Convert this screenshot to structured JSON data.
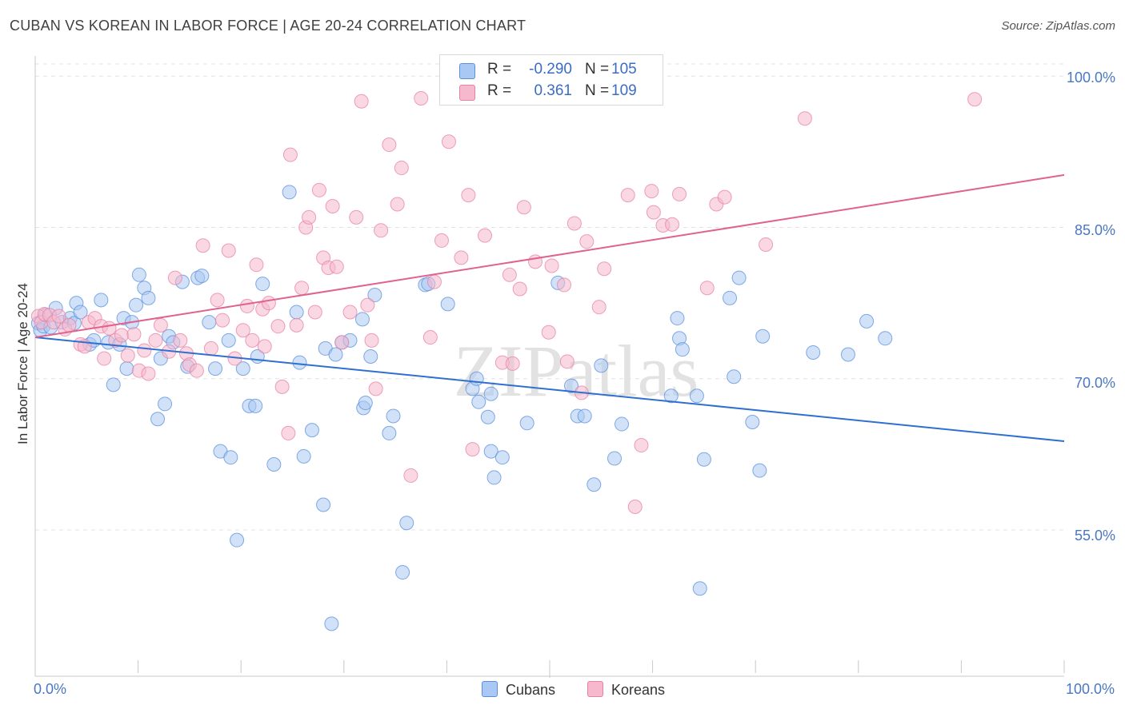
{
  "title": "CUBAN VS KOREAN IN LABOR FORCE | AGE 20-24 CORRELATION CHART",
  "source": "Source: ZipAtlas.com",
  "watermark": "ZIPatlas",
  "colors": {
    "cubans_fill": "#a9c8f3",
    "cubans_stroke": "#5b8fdc",
    "cubans_line": "#2f6fd0",
    "koreans_fill": "#f6b8cc",
    "koreans_stroke": "#e880a4",
    "koreans_line": "#e0628e",
    "axis_text": "#4a77c4",
    "grid": "#e3e3e3"
  },
  "legend_top": {
    "cubans": {
      "r_label": "R =",
      "r_value": "-0.290",
      "n_label": "N =",
      "n_value": "105"
    },
    "koreans": {
      "r_label": "R =",
      "r_value": "0.361",
      "n_label": "N =",
      "n_value": "109"
    }
  },
  "chart_data": {
    "type": "scatter",
    "title": "CUBAN VS KOREAN IN LABOR FORCE | AGE 20-24 CORRELATION CHART",
    "xlabel": "",
    "ylabel": "In Labor Force | Age 20-24",
    "xlim": [
      0,
      100
    ],
    "ylim": [
      40.5,
      102
    ],
    "x_tick_labels": [
      "0.0%",
      "100.0%"
    ],
    "y_ticks": [
      55,
      70,
      85,
      100
    ],
    "y_tick_labels": [
      "55.0%",
      "70.0%",
      "85.0%",
      "100.0%"
    ],
    "grid": true,
    "legend": "bottom-center",
    "series": [
      {
        "name": "Cubans",
        "R": -0.29,
        "N": 105,
        "trend": {
          "x": [
            0,
            100
          ],
          "y": [
            74.1,
            63.8
          ]
        },
        "points": [
          [
            0.3,
            75.5
          ],
          [
            0.5,
            74.8
          ],
          [
            0.8,
            75.2
          ],
          [
            1,
            76.3
          ],
          [
            1.5,
            75.1
          ],
          [
            2,
            77
          ],
          [
            2.6,
            75.6
          ],
          [
            3.4,
            76
          ],
          [
            3.8,
            75.5
          ],
          [
            4,
            77.5
          ],
          [
            4.4,
            76.6
          ],
          [
            5.3,
            73.4
          ],
          [
            5.7,
            73.8
          ],
          [
            6.4,
            77.8
          ],
          [
            7.1,
            73.6
          ],
          [
            7.6,
            69.4
          ],
          [
            8.2,
            73.4
          ],
          [
            8.6,
            76
          ],
          [
            8.9,
            71
          ],
          [
            9.4,
            75.6
          ],
          [
            9.8,
            77.3
          ],
          [
            10.1,
            80.3
          ],
          [
            10.6,
            79
          ],
          [
            11,
            78
          ],
          [
            11.9,
            66
          ],
          [
            12.6,
            67.5
          ],
          [
            12.2,
            72
          ],
          [
            13,
            74.2
          ],
          [
            13.4,
            73.6
          ],
          [
            14.3,
            79.6
          ],
          [
            14.8,
            71.2
          ],
          [
            15.8,
            80
          ],
          [
            16.2,
            80.2
          ],
          [
            16.9,
            75.6
          ],
          [
            17.5,
            71
          ],
          [
            18,
            62.8
          ],
          [
            18.8,
            73.8
          ],
          [
            19,
            62.2
          ],
          [
            19.6,
            54
          ],
          [
            20.2,
            71
          ],
          [
            20.8,
            67.3
          ],
          [
            21.4,
            67.3
          ],
          [
            21.6,
            72.2
          ],
          [
            22.1,
            79.4
          ],
          [
            23.2,
            61.5
          ],
          [
            24.7,
            88.5
          ],
          [
            25.4,
            76.6
          ],
          [
            25.7,
            71.6
          ],
          [
            26.1,
            62.3
          ],
          [
            26.9,
            64.9
          ],
          [
            28,
            57.5
          ],
          [
            28.2,
            73
          ],
          [
            28.8,
            45.7
          ],
          [
            29.2,
            72.4
          ],
          [
            29.8,
            73.6
          ],
          [
            30.6,
            73.8
          ],
          [
            31.8,
            75.9
          ],
          [
            31.9,
            67.1
          ],
          [
            32.1,
            67.6
          ],
          [
            32.6,
            72.2
          ],
          [
            33,
            78.3
          ],
          [
            34.4,
            64.6
          ],
          [
            34.8,
            66.3
          ],
          [
            35.7,
            50.8
          ],
          [
            36.1,
            55.7
          ],
          [
            37.9,
            79.3
          ],
          [
            38.2,
            79.4
          ],
          [
            40.1,
            77.4
          ],
          [
            42.5,
            69
          ],
          [
            42.9,
            70
          ],
          [
            43.1,
            67.7
          ],
          [
            44,
            66.2
          ],
          [
            44.3,
            68.5
          ],
          [
            44.3,
            62.8
          ],
          [
            44.6,
            60.2
          ],
          [
            45.4,
            62.2
          ],
          [
            47.8,
            65.6
          ],
          [
            50.8,
            79.5
          ],
          [
            52.1,
            69.3
          ],
          [
            52.7,
            66.3
          ],
          [
            53.4,
            66.3
          ],
          [
            54.3,
            59.5
          ],
          [
            55,
            71.3
          ],
          [
            56.3,
            62.1
          ],
          [
            57,
            65.5
          ],
          [
            61.8,
            68.3
          ],
          [
            62.4,
            76
          ],
          [
            62.6,
            74
          ],
          [
            62.9,
            72.9
          ],
          [
            64.3,
            68.3
          ],
          [
            64.6,
            49.2
          ],
          [
            65,
            62
          ],
          [
            67.5,
            78
          ],
          [
            67.9,
            70.2
          ],
          [
            68.4,
            80
          ],
          [
            69.7,
            65.7
          ],
          [
            70.4,
            60.9
          ],
          [
            70.7,
            74.2
          ],
          [
            75.6,
            72.6
          ],
          [
            79,
            72.4
          ],
          [
            80.8,
            75.7
          ],
          [
            82.6,
            74
          ]
        ]
      },
      {
        "name": "Koreans",
        "R": 0.361,
        "N": 109,
        "trend": {
          "x": [
            0,
            100
          ],
          "y": [
            74.1,
            90.2
          ]
        },
        "points": [
          [
            0.3,
            76.2
          ],
          [
            0.6,
            75.6
          ],
          [
            0.9,
            76.4
          ],
          [
            1.4,
            76.3
          ],
          [
            1.8,
            75.6
          ],
          [
            2.3,
            76.2
          ],
          [
            2.9,
            74.9
          ],
          [
            3.3,
            75.3
          ],
          [
            4.4,
            73.4
          ],
          [
            4.8,
            73.2
          ],
          [
            5.2,
            75.6
          ],
          [
            5.8,
            76
          ],
          [
            6.4,
            75.2
          ],
          [
            6.7,
            72
          ],
          [
            7.2,
            75
          ],
          [
            7.8,
            73.8
          ],
          [
            8.4,
            74.3
          ],
          [
            9,
            72.3
          ],
          [
            9.6,
            74.4
          ],
          [
            10.1,
            70.8
          ],
          [
            10.6,
            72.8
          ],
          [
            11,
            70.5
          ],
          [
            11.7,
            73.8
          ],
          [
            12.2,
            75.3
          ],
          [
            13,
            72.7
          ],
          [
            13.6,
            80
          ],
          [
            14.1,
            73.8
          ],
          [
            14.7,
            72.5
          ],
          [
            15,
            71.4
          ],
          [
            15.7,
            70.8
          ],
          [
            16.3,
            83.2
          ],
          [
            17.1,
            73
          ],
          [
            17.7,
            77.8
          ],
          [
            18.2,
            75.8
          ],
          [
            18.8,
            82.7
          ],
          [
            19.4,
            72
          ],
          [
            20.2,
            74.8
          ],
          [
            20.6,
            77.2
          ],
          [
            21.1,
            73.8
          ],
          [
            21.5,
            81.3
          ],
          [
            22.1,
            76.9
          ],
          [
            22.3,
            73.2
          ],
          [
            22.7,
            77.5
          ],
          [
            23.6,
            75.2
          ],
          [
            24,
            69.2
          ],
          [
            24.6,
            64.6
          ],
          [
            24.8,
            92.2
          ],
          [
            25.4,
            75.3
          ],
          [
            25.9,
            79
          ],
          [
            26.3,
            85
          ],
          [
            26.6,
            86
          ],
          [
            27.2,
            76.6
          ],
          [
            27.6,
            88.7
          ],
          [
            28,
            82
          ],
          [
            28.5,
            81
          ],
          [
            28.9,
            87.1
          ],
          [
            29.3,
            81.1
          ],
          [
            29.8,
            73.6
          ],
          [
            30.6,
            76.6
          ],
          [
            31.2,
            86
          ],
          [
            31.7,
            97.5
          ],
          [
            32.3,
            77.3
          ],
          [
            32.7,
            73.8
          ],
          [
            33.1,
            69
          ],
          [
            33.6,
            84.7
          ],
          [
            34.4,
            93.2
          ],
          [
            35.2,
            87.3
          ],
          [
            35.6,
            90.9
          ],
          [
            36.5,
            60.4
          ],
          [
            37.5,
            97.8
          ],
          [
            38.4,
            74.1
          ],
          [
            38.8,
            79.6
          ],
          [
            39.5,
            83.7
          ],
          [
            40.2,
            93.5
          ],
          [
            41.4,
            82
          ],
          [
            42.1,
            88.2
          ],
          [
            42.5,
            63
          ],
          [
            43.7,
            84.2
          ],
          [
            45.4,
            71.6
          ],
          [
            46.1,
            80.3
          ],
          [
            46.4,
            71.5
          ],
          [
            47.1,
            78.9
          ],
          [
            47.5,
            87
          ],
          [
            48.6,
            81.6
          ],
          [
            49.9,
            74.6
          ],
          [
            50.2,
            81.2
          ],
          [
            51.4,
            79.3
          ],
          [
            51.7,
            71.7
          ],
          [
            52.4,
            85.4
          ],
          [
            53.1,
            68.6
          ],
          [
            53.6,
            83.6
          ],
          [
            54.8,
            77.1
          ],
          [
            55.3,
            80.9
          ],
          [
            57.6,
            88.2
          ],
          [
            58.3,
            57.3
          ],
          [
            58.9,
            63.4
          ],
          [
            59.9,
            88.6
          ],
          [
            60.1,
            86.5
          ],
          [
            61,
            85.2
          ],
          [
            61.9,
            85.3
          ],
          [
            62.6,
            88.3
          ],
          [
            65.3,
            79
          ],
          [
            66.2,
            87.3
          ],
          [
            67,
            88
          ],
          [
            71,
            83.3
          ],
          [
            74.8,
            95.8
          ],
          [
            91.3,
            97.7
          ]
        ]
      }
    ]
  },
  "legend_bottom": {
    "cubans": "Cubans",
    "koreans": "Koreans"
  }
}
